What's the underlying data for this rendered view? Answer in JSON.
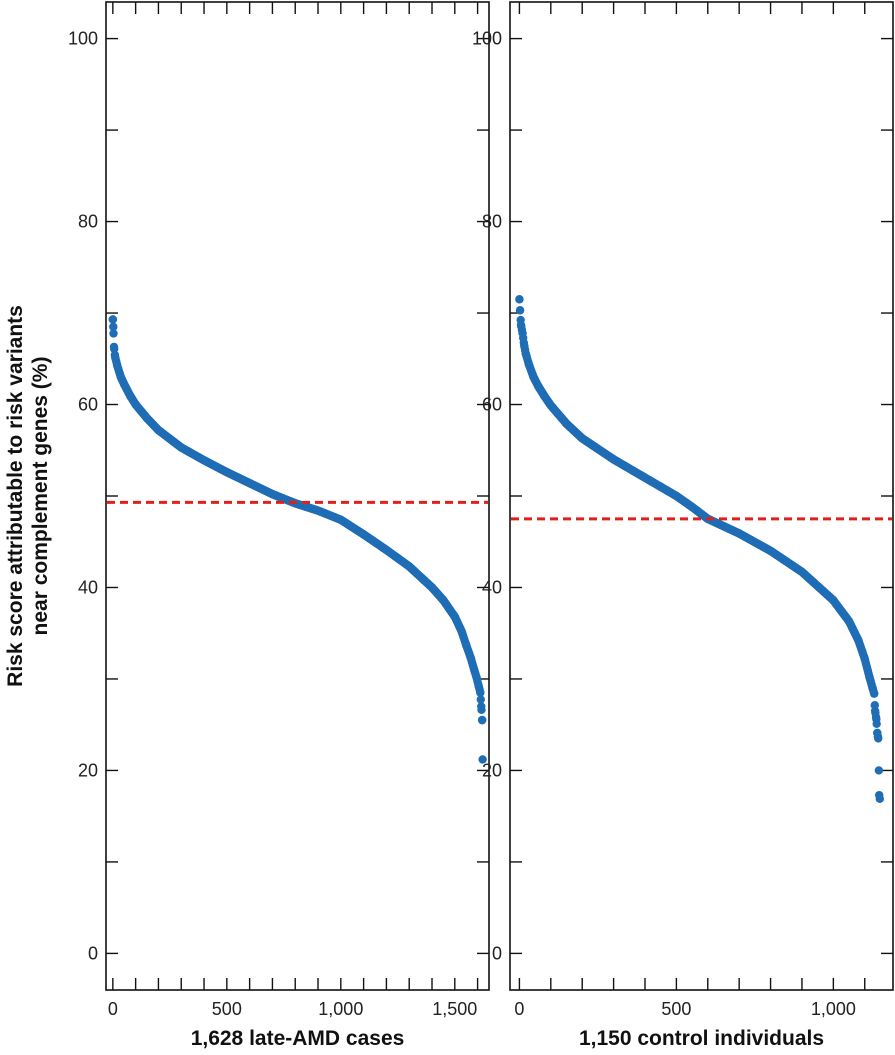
{
  "ylabel": "Risk score attributable to risk variants near complement genes (%)",
  "ylabel_lines": [
    "Risk score attributable to risk variants",
    "near complement genes (%)"
  ],
  "colors": {
    "points": "#1f6db5",
    "mean_line": "#e0201b",
    "axes": "#111111"
  },
  "chart_data": [
    {
      "type": "scatter",
      "xlabel": "1,628 late-AMD cases",
      "xlim": [
        -30,
        1650
      ],
      "ylim": [
        -4,
        104
      ],
      "x_ticks": [
        0,
        500,
        1000,
        1500
      ],
      "x_tick_labels": [
        "0",
        "500",
        "1,000",
        "1,500"
      ],
      "y_ticks": [
        0,
        20,
        40,
        60,
        80,
        100
      ],
      "y_tick_labels": [
        "0",
        "20",
        "40",
        "60",
        "80",
        "100"
      ],
      "grid": false,
      "n": 1628,
      "mean_line_y": 49.3,
      "curve_x": [
        0,
        2,
        5,
        10,
        20,
        35,
        50,
        75,
        100,
        150,
        200,
        300,
        400,
        500,
        600,
        700,
        800,
        850,
        900,
        1000,
        1100,
        1200,
        1300,
        1400,
        1450,
        1500,
        1530,
        1550,
        1570,
        1585,
        1595,
        1605,
        1612,
        1616,
        1620
      ],
      "curve_y": [
        69.3,
        68.5,
        66.3,
        65.2,
        64.2,
        63.0,
        62.2,
        61.0,
        60.0,
        58.5,
        57.2,
        55.3,
        53.9,
        52.6,
        51.4,
        50.2,
        49.2,
        48.8,
        48.4,
        47.4,
        45.8,
        44.1,
        42.3,
        40.0,
        38.6,
        36.8,
        35.2,
        33.7,
        32.3,
        31.0,
        30.2,
        29.2,
        28.5,
        27.0,
        25.5
      ],
      "outliers": [
        {
          "x": 1622,
          "y": 21.2
        }
      ]
    },
    {
      "type": "scatter",
      "xlabel": "1,150 control individuals",
      "xlim": [
        -30,
        1190
      ],
      "ylim": [
        -4,
        104
      ],
      "x_ticks": [
        0,
        500,
        1000
      ],
      "x_tick_labels": [
        "0",
        "500",
        "1,000"
      ],
      "y_ticks": [
        0,
        20,
        40,
        60,
        80,
        100
      ],
      "y_tick_labels": [
        "0",
        "20",
        "40",
        "60",
        "80",
        "100"
      ],
      "grid": false,
      "n": 1150,
      "mean_line_y": 47.5,
      "curve_x": [
        0,
        2,
        5,
        10,
        15,
        20,
        30,
        45,
        60,
        80,
        100,
        150,
        200,
        300,
        400,
        500,
        550,
        600,
        700,
        800,
        900,
        1000,
        1050,
        1080,
        1100,
        1115,
        1125,
        1130,
        1133,
        1137,
        1140,
        1143
      ],
      "curve_y": [
        71.5,
        70.3,
        68.7,
        67.8,
        66.5,
        65.6,
        64.4,
        63.0,
        62.0,
        60.9,
        59.9,
        57.9,
        56.3,
        54.0,
        52.0,
        50.0,
        48.8,
        47.5,
        45.9,
        44.0,
        41.7,
        38.6,
        36.3,
        34.2,
        32.2,
        30.2,
        29.0,
        28.4,
        26.5,
        25.6,
        24.1,
        23.5
      ],
      "outliers": [
        {
          "x": 1145,
          "y": 20.0
        },
        {
          "x": 1146,
          "y": 17.3
        },
        {
          "x": 1148,
          "y": 16.9
        }
      ]
    }
  ]
}
